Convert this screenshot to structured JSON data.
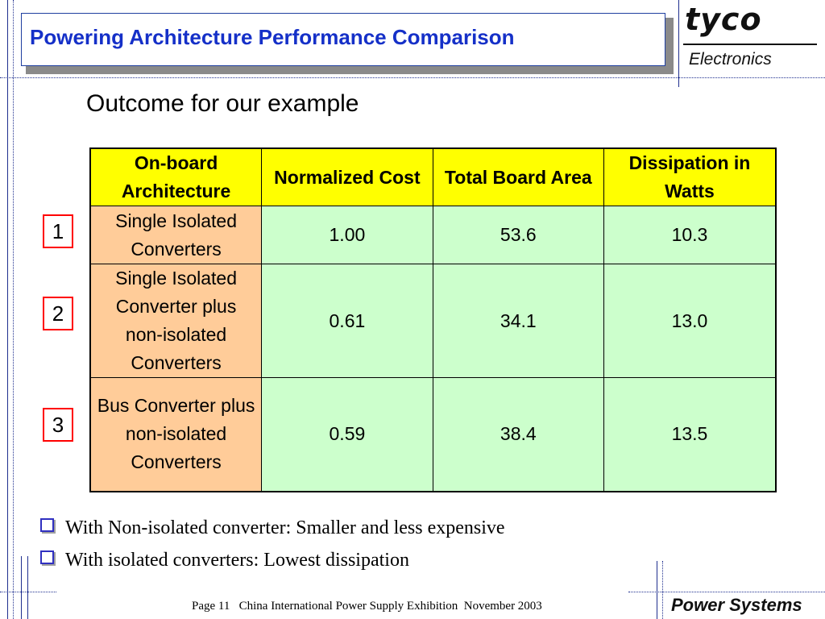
{
  "title": "Powering Architecture Performance Comparison",
  "logo": {
    "brand": "tyco",
    "division": "Electronics"
  },
  "subtitle": "Outcome for our example",
  "table": {
    "headers": [
      "On-board Architecture",
      "Normalized Cost",
      "Total Board Area",
      "Dissipation in Watts"
    ],
    "rows": [
      {
        "number": "1",
        "architecture": "Single Isolated Converters",
        "cost": "1.00",
        "area": "53.6",
        "dissipation": "10.3"
      },
      {
        "number": "2",
        "architecture": "Single Isolated Converter plus non-isolated Converters",
        "cost": "0.61",
        "area": "34.1",
        "dissipation": "13.0"
      },
      {
        "number": "3",
        "architecture": "Bus Converter plus non-isolated Converters",
        "cost": "0.59",
        "area": "38.4",
        "dissipation": "13.5"
      }
    ]
  },
  "bullets": [
    "With Non-isolated converter: Smaller and less expensive",
    "With isolated converters: Lowest dissipation"
  ],
  "footer": {
    "page": "Page 11",
    "event": "China International Power Supply Exhibition",
    "date": "November 2003"
  },
  "footer_brand": "Power Systems",
  "colors": {
    "title": "#1530c8",
    "header_fill": "#ffff00",
    "architecture_fill": "#ffcc99",
    "value_fill": "#ccffcc",
    "number_border": "#ff0000"
  }
}
